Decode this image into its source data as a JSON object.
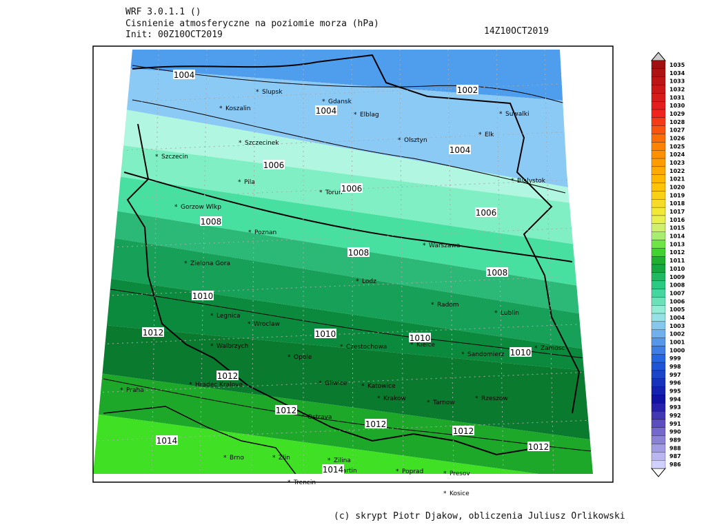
{
  "header": {
    "model": "WRF 3.0.1.1 ()",
    "title": "Cisnienie atmosferyczne na poziomie morza (hPa)",
    "init": "Init: 00Z10OCT2019",
    "valid": "14Z10OCT2019"
  },
  "cities": [
    "Slupsk",
    "Gdansk",
    "Koszalin",
    "Elblag",
    "Suwalki",
    "Elk",
    "Szczecinek",
    "Olsztyn",
    "Szczecin",
    "Bialystok",
    "Pila",
    "Torun",
    "Gorzow Wlkp",
    "Poznan",
    "Warszawa",
    "Zielona Gora",
    "Lodz",
    "Radom",
    "Lublin",
    "Legnica",
    "Wroclaw",
    "Walbrzych",
    "Opole",
    "Czestochowa",
    "Kielce",
    "Sandomierz",
    "Zamosc",
    "Hradec Kralove",
    "Gliwice",
    "Katowice",
    "Praha",
    "Krakow",
    "Tarnow",
    "Rzeszow",
    "Ostrava",
    "Brno",
    "Zlin",
    "Zilina",
    "Martin",
    "Poprad",
    "Presov",
    "Trencin",
    "Kosice"
  ],
  "contour_labels": [
    1004,
    1004,
    1002,
    1004,
    1006,
    1006,
    1006,
    1008,
    1008,
    1008,
    1010,
    1010,
    1010,
    1010,
    1012,
    1012,
    1012,
    1012,
    1012,
    1012,
    1014,
    1014
  ],
  "colorbar": {
    "levels": [
      1035,
      1034,
      1033,
      1032,
      1031,
      1030,
      1029,
      1028,
      1027,
      1026,
      1025,
      1024,
      1023,
      1022,
      1021,
      1020,
      1019,
      1018,
      1017,
      1016,
      1015,
      1014,
      1013,
      1012,
      1011,
      1010,
      1009,
      1008,
      1007,
      1006,
      1005,
      1004,
      1003,
      1002,
      1001,
      1000,
      999,
      998,
      997,
      996,
      995,
      994,
      993,
      992,
      991,
      990,
      989,
      988,
      987,
      986
    ]
  },
  "footer": "(c) skrypt Piotr Djakow, obliczenia Juliusz Orlikowski"
}
